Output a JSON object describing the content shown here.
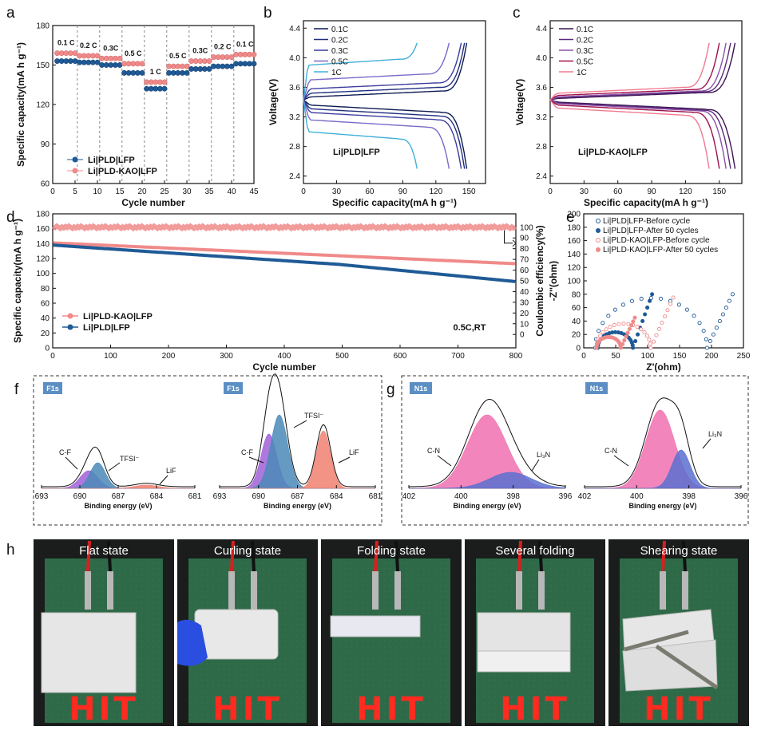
{
  "panel_labels": {
    "a": "a",
    "b": "b",
    "c": "c",
    "d": "d",
    "e": "e",
    "f": "f",
    "g": "g",
    "h": "h"
  },
  "colors": {
    "blue": "#1f5a96",
    "pink": "#f08a8a",
    "navy": "#14306e",
    "magenta": "#8a1a55"
  },
  "chart_data": [
    {
      "id": "a",
      "type": "scatter",
      "xlabel": "Cycle number",
      "ylabel": "Specific capacity(mA h g⁻¹)",
      "xlim": [
        0,
        45
      ],
      "ylim": [
        60,
        180
      ],
      "xticks": [
        0,
        5,
        10,
        15,
        20,
        25,
        30,
        35,
        40,
        45
      ],
      "yticks": [
        60,
        90,
        120,
        150,
        180
      ],
      "rate_labels": [
        "0.1 C",
        "0.2 C",
        "0.3C",
        "0.5 C",
        "1 C",
        "0.5 C",
        "0.3C",
        "0.2 C",
        "0.1 C"
      ],
      "segments": [
        {
          "from": 1,
          "to": 5,
          "pld": 153,
          "kao": 159
        },
        {
          "from": 6,
          "to": 10,
          "pld": 152,
          "kao": 157
        },
        {
          "from": 11,
          "to": 15,
          "pld": 150,
          "kao": 155
        },
        {
          "from": 16,
          "to": 20,
          "pld": 144,
          "kao": 151
        },
        {
          "from": 21,
          "to": 25,
          "pld": 132,
          "kao": 137
        },
        {
          "from": 26,
          "to": 30,
          "pld": 144,
          "kao": 149
        },
        {
          "from": 31,
          "to": 35,
          "pld": 147,
          "kao": 153
        },
        {
          "from": 36,
          "to": 40,
          "pld": 149,
          "kao": 156
        },
        {
          "from": 41,
          "to": 45,
          "pld": 151,
          "kao": 158
        }
      ],
      "legend": [
        "Li|PLD|LFP",
        "Li|PLD-KAO|LFP"
      ]
    },
    {
      "id": "b",
      "type": "line",
      "xlabel": "Specific capacity(mA h g⁻¹)",
      "ylabel": "Voltage(V)",
      "xlim": [
        0,
        165
      ],
      "ylim": [
        2.3,
        4.5
      ],
      "xticks": [
        0,
        30,
        60,
        90,
        120,
        150
      ],
      "yticks": [
        2.4,
        2.8,
        3.2,
        3.6,
        4.0,
        4.4
      ],
      "annotation": "Li|PLD|LFP",
      "series": [
        {
          "name": "0.1C",
          "cap": 148,
          "vc": 3.47,
          "vd": 3.36,
          "color": "#0e1a52"
        },
        {
          "name": "0.2C",
          "cap": 146,
          "vc": 3.52,
          "vd": 3.31,
          "color": "#1f2f80"
        },
        {
          "name": "0.3C",
          "cap": 143,
          "vc": 3.58,
          "vd": 3.26,
          "color": "#3c3c9e"
        },
        {
          "name": "0.5C",
          "cap": 132,
          "vc": 3.7,
          "vd": 3.16,
          "color": "#7a6ac8"
        },
        {
          "name": "1C",
          "cap": 103,
          "vc": 3.9,
          "vd": 3.0,
          "color": "#3fb0d8"
        }
      ]
    },
    {
      "id": "c",
      "type": "line",
      "xlabel": "Specific capacity(mA h g⁻¹)",
      "ylabel": "Voltage(V)",
      "xlim": [
        0,
        170
      ],
      "ylim": [
        2.3,
        4.5
      ],
      "xticks": [
        0,
        30,
        60,
        90,
        120,
        150
      ],
      "yticks": [
        2.4,
        2.8,
        3.2,
        3.6,
        4.0,
        4.4
      ],
      "annotation": "Li|PLD-KAO|LFP",
      "series": [
        {
          "name": "0.1C",
          "cap": 164,
          "vc": 3.45,
          "vd": 3.4,
          "color": "#3a1450"
        },
        {
          "name": "0.2C",
          "cap": 160,
          "vc": 3.46,
          "vd": 3.39,
          "color": "#5a2a7a"
        },
        {
          "name": "0.3C",
          "cap": 156,
          "vc": 3.47,
          "vd": 3.38,
          "color": "#8a52a8"
        },
        {
          "name": "0.5C",
          "cap": 150,
          "vc": 3.49,
          "vd": 3.36,
          "color": "#a0104a"
        },
        {
          "name": "1C",
          "cap": 141,
          "vc": 3.52,
          "vd": 3.32,
          "color": "#f07a90"
        }
      ]
    },
    {
      "id": "d",
      "type": "scatter",
      "xlabel": "Cycle number",
      "ylabel": "Specific  capacity(mA h g⁻¹)",
      "y2label": "Coulombic efficiency(%)",
      "xlim": [
        0,
        800
      ],
      "ylim": [
        0,
        180
      ],
      "y2lim": [
        -12.5,
        112.5
      ],
      "xticks": [
        0,
        100,
        200,
        300,
        400,
        500,
        600,
        700,
        800
      ],
      "yticks": [
        0,
        20,
        40,
        60,
        80,
        100,
        120,
        140,
        160,
        180
      ],
      "y2ticks": [
        0,
        10,
        20,
        30,
        40,
        50,
        60,
        70,
        80,
        90,
        100
      ],
      "annotation": "0.5C,RT",
      "kao_capacity": {
        "start": 141,
        "end": 113
      },
      "pld_capacity": {
        "start": 138,
        "end": 89
      },
      "coulombic_efficiency": 100,
      "legend": [
        "Li|PLD-KAO|LFP",
        "Li|PLD|LFP"
      ]
    },
    {
      "id": "e",
      "type": "scatter",
      "xlabel": "Z'(ohm)",
      "ylabel": "-Z''(ohm)",
      "xlim": [
        0,
        250
      ],
      "ylim": [
        0,
        200
      ],
      "xticks": [
        0,
        50,
        100,
        150,
        200,
        250
      ],
      "yticks": [
        0,
        20,
        40,
        60,
        80,
        100,
        120,
        140,
        160,
        180,
        200
      ],
      "series": [
        {
          "name": "Li|PLD|LFP-Before cycle",
          "r0": 18,
          "rct": 175,
          "tail": [
            233,
            80
          ],
          "filled": false,
          "color": "#1f5a96"
        },
        {
          "name": "Li|PLD|LFP-After 50 cycles",
          "r0": 22,
          "rct": 55,
          "tail": [
            107,
            80
          ],
          "filled": true,
          "color": "#1f5a96"
        },
        {
          "name": "Li|PLD-KAO|LFP-Before cycle",
          "r0": 20,
          "rct": 85,
          "tail": [
            140,
            75
          ],
          "filled": false,
          "color": "#f08a8a"
        },
        {
          "name": "Li|PLD-KAO|LFP-After 50 cycles",
          "r0": 20,
          "rct": 38,
          "tail": [
            80,
            45
          ],
          "filled": true,
          "color": "#f08a8a"
        }
      ]
    },
    {
      "id": "f",
      "type": "area",
      "xlabel": "Binding energy   (eV)",
      "xticks": [
        693,
        690,
        687,
        684,
        681
      ],
      "badge": "F1s",
      "peaks_left": {
        "C-F": "C-F",
        "TFSI": "TFSI⁻",
        "LiF": "LiF"
      },
      "peaks_right": {
        "C-F": "C-F",
        "TFSI": "TFSI⁻",
        "LiF": "LiF"
      }
    },
    {
      "id": "g",
      "type": "area",
      "xlabel": "Binding energy   (eV)",
      "xticks": [
        402,
        400,
        398,
        396
      ],
      "badge": "N1s",
      "peaks": {
        "CN": "C-N",
        "Li3N": "Li₃N"
      }
    }
  ],
  "photos": [
    {
      "label": "Flat state"
    },
    {
      "label": "Curling state"
    },
    {
      "label": "Folding state"
    },
    {
      "label": "Several folding"
    },
    {
      "label": "Shearing state"
    }
  ],
  "led_text": "HIT"
}
